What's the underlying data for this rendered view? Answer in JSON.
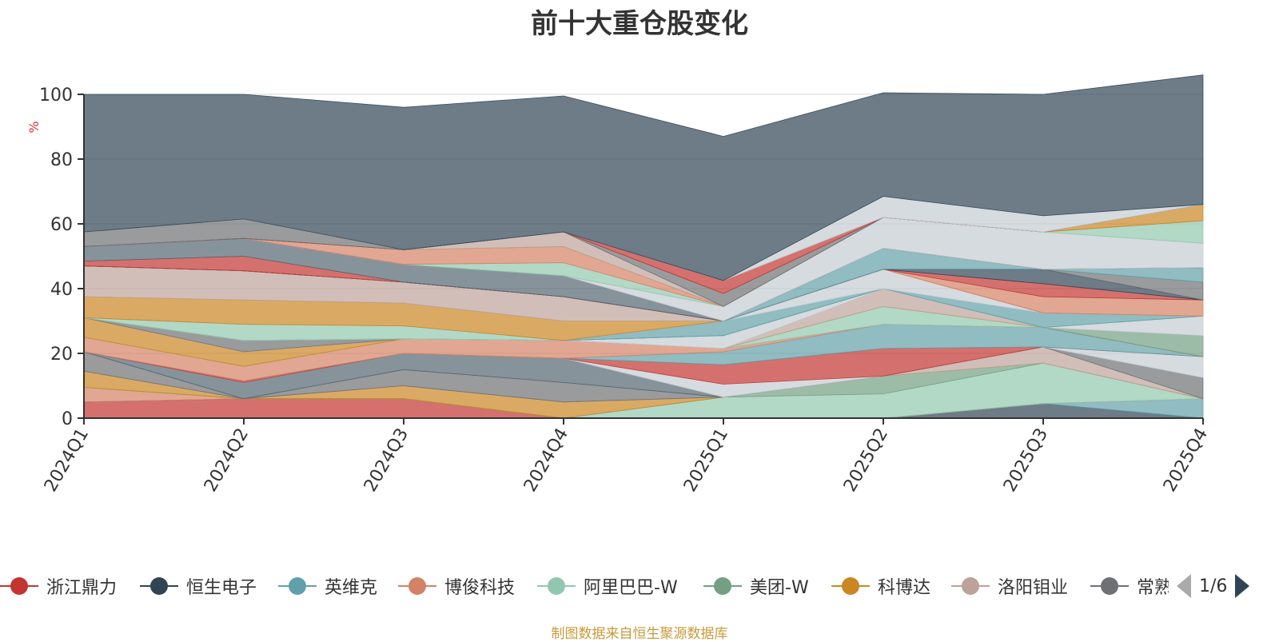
{
  "title": "前十大重仓股变化",
  "source_note": "制图数据来自恒生聚源数据库",
  "pager": {
    "text": "1/6"
  },
  "chart_data": {
    "type": "area",
    "title": "前十大重仓股变化",
    "y_unit": "%",
    "ylim": [
      0,
      100
    ],
    "y_ticks": [
      0,
      20,
      40,
      60,
      80,
      100
    ],
    "categories": [
      "2024Q1",
      "2024Q2",
      "2024Q3",
      "2024Q4",
      "2025Q1",
      "2025Q2",
      "2025Q3",
      "2025Q4"
    ],
    "grid": true,
    "legend_position": "bottom",
    "series": [
      {
        "name": "浙江鼎力",
        "color": "#c23531",
        "values": [
          5,
          6,
          6,
          0,
          0,
          0,
          0,
          0
        ]
      },
      {
        "name": "恒生电子",
        "color": "#2f4554",
        "values": [
          0,
          0,
          0,
          0,
          0,
          0,
          4.5,
          0
        ]
      },
      {
        "name": "英维克",
        "color": "#61a0a8",
        "values": [
          0,
          0,
          0,
          0,
          0,
          0,
          0,
          6
        ]
      },
      {
        "name": "博俊科技",
        "color": "#d48265",
        "values": [
          4.5,
          0,
          0,
          0,
          0,
          0,
          0,
          0
        ]
      },
      {
        "name": "阿里巴巴-W",
        "color": "#91c7ae",
        "values": [
          0,
          0,
          0,
          0,
          6.5,
          7.5,
          12.5,
          0
        ]
      },
      {
        "name": "美团-W",
        "color": "#749f83",
        "values": [
          0,
          0,
          0,
          0,
          0,
          5.5,
          0,
          0
        ]
      },
      {
        "name": "科博达",
        "color": "#ca8622",
        "values": [
          5,
          0,
          4,
          5,
          0,
          0,
          0,
          0
        ]
      },
      {
        "name": "洛阳钼业",
        "color": "#bda29a",
        "values": [
          0,
          0,
          0,
          0,
          0,
          0,
          5,
          0
        ]
      },
      {
        "name": "常熟银行",
        "color": "#6e7074",
        "values": [
          6,
          0,
          5,
          6,
          0,
          0,
          0,
          6.5
        ]
      },
      {
        "name": "",
        "color": "#546570",
        "values": [
          0,
          5,
          5,
          7.5,
          0,
          0,
          0,
          0
        ]
      },
      {
        "name": "",
        "color": "#c4ccd3",
        "values": [
          0,
          0,
          0,
          0,
          4,
          0,
          0,
          6.5
        ]
      },
      {
        "name": "",
        "color": "#c23531",
        "values": [
          0,
          0.5,
          0,
          0,
          6,
          8.5,
          0,
          0
        ]
      },
      {
        "name": "",
        "color": "#61a0a8",
        "values": [
          0,
          0,
          0,
          0,
          4,
          7.5,
          6,
          0
        ]
      },
      {
        "name": "",
        "color": "#d48265",
        "values": [
          4.5,
          4.5,
          4.5,
          5.5,
          1,
          0,
          0,
          0
        ]
      },
      {
        "name": "",
        "color": "#91c7ae",
        "values": [
          0,
          0,
          0,
          0,
          0,
          5.5,
          0,
          0
        ]
      },
      {
        "name": "",
        "color": "#ca8622",
        "values": [
          6,
          4.5,
          0,
          0,
          0,
          0,
          0,
          0
        ]
      },
      {
        "name": "",
        "color": "#bda29a",
        "values": [
          0,
          0,
          0,
          0,
          0,
          5.5,
          0,
          0
        ]
      },
      {
        "name": "",
        "color": "#c4ccd3",
        "values": [
          0,
          0,
          0,
          0,
          4,
          0,
          0,
          0
        ]
      },
      {
        "name": "",
        "color": "#6e7074",
        "values": [
          0,
          3.5,
          0,
          0,
          0,
          0,
          0,
          0
        ]
      },
      {
        "name": "",
        "color": "#749f83",
        "values": [
          0,
          0,
          0,
          0,
          0,
          0,
          0,
          6.5
        ]
      },
      {
        "name": "",
        "color": "#c4ccd3",
        "values": [
          0,
          0,
          0,
          0,
          0,
          0,
          0,
          6
        ]
      },
      {
        "name": "",
        "color": "#91c7ae",
        "values": [
          0,
          5,
          4,
          0,
          0,
          0,
          0,
          0
        ]
      },
      {
        "name": "",
        "color": "#61a0a8",
        "values": [
          0,
          0,
          0,
          0,
          4.5,
          0,
          4.5,
          0
        ]
      },
      {
        "name": "",
        "color": "#c4ccd3",
        "values": [
          0,
          0,
          0,
          0,
          0,
          6,
          0,
          0
        ]
      },
      {
        "name": "",
        "color": "#ca8622",
        "values": [
          6.5,
          7.5,
          7,
          6,
          0,
          0,
          0,
          0
        ]
      },
      {
        "name": "",
        "color": "#bda29a",
        "values": [
          9.5,
          9,
          6.5,
          7.5,
          0,
          0,
          0,
          0
        ]
      },
      {
        "name": "",
        "color": "#d48265",
        "values": [
          0,
          0,
          0,
          0,
          0,
          0,
          5,
          5
        ]
      },
      {
        "name": "",
        "color": "#c23531",
        "values": [
          0,
          0,
          0,
          0,
          0,
          0,
          4,
          0
        ]
      },
      {
        "name": "",
        "color": "#2f4554",
        "values": [
          0,
          0,
          0,
          0,
          0,
          0,
          4.5,
          0
        ]
      },
      {
        "name": "",
        "color": "#6e7074",
        "values": [
          0,
          0,
          0,
          0,
          0,
          0,
          0,
          5.5
        ]
      },
      {
        "name": "",
        "color": "#61a0a8",
        "values": [
          0,
          0,
          0,
          0,
          0,
          6.5,
          0,
          4.5
        ]
      },
      {
        "name": "",
        "color": "#c23531",
        "values": [
          1.5,
          4.5,
          0,
          0,
          0,
          0,
          0,
          0
        ]
      },
      {
        "name": "",
        "color": "#546570",
        "values": [
          4.5,
          5.5,
          5.5,
          6.5,
          0,
          0,
          0,
          0
        ]
      },
      {
        "name": "",
        "color": "#c4ccd3",
        "values": [
          0,
          0,
          0,
          0,
          4.5,
          9.5,
          11.5,
          7.5
        ]
      },
      {
        "name": "",
        "color": "#91c7ae",
        "values": [
          0,
          0,
          0,
          4,
          0,
          0,
          0,
          7
        ]
      },
      {
        "name": "",
        "color": "#d48265",
        "values": [
          0,
          0,
          4.5,
          5,
          0,
          0,
          0,
          0
        ]
      },
      {
        "name": "",
        "color": "#ca8622",
        "values": [
          0,
          0,
          0,
          0,
          0,
          0,
          0,
          5
        ]
      },
      {
        "name": "",
        "color": "#bda29a",
        "values": [
          0,
          0,
          0,
          4.5,
          0,
          0,
          0,
          0
        ]
      },
      {
        "name": "",
        "color": "#6e7074",
        "values": [
          0,
          0,
          0,
          0,
          4,
          0,
          0,
          0
        ]
      },
      {
        "name": "",
        "color": "#c23531",
        "values": [
          0,
          0,
          0,
          0,
          4,
          0,
          0,
          0
        ]
      },
      {
        "name": "",
        "color": "#6e7074",
        "values": [
          4.5,
          6,
          0,
          0,
          0,
          0,
          0,
          0
        ]
      },
      {
        "name": "",
        "color": "#c4ccd3",
        "values": [
          0,
          0,
          0,
          0,
          0,
          6.5,
          5,
          0
        ]
      },
      {
        "name": "",
        "color": "#2f4554",
        "values": [
          42.5,
          38.5,
          44,
          42,
          44.5,
          32,
          37.5,
          40
        ]
      }
    ]
  },
  "legend": {
    "items": [
      {
        "name": "浙江鼎力",
        "color": "#c23531"
      },
      {
        "name": "恒生电子",
        "color": "#2f4554"
      },
      {
        "name": "英维克",
        "color": "#61a0a8"
      },
      {
        "name": "博俊科技",
        "color": "#d48265"
      },
      {
        "name": "阿里巴巴-W",
        "color": "#91c7ae"
      },
      {
        "name": "美团-W",
        "color": "#749f83"
      },
      {
        "name": "科博达",
        "color": "#ca8622"
      },
      {
        "name": "洛阳钼业",
        "color": "#bda29a"
      },
      {
        "name": "常熟银行",
        "color": "#6e7074"
      }
    ]
  }
}
